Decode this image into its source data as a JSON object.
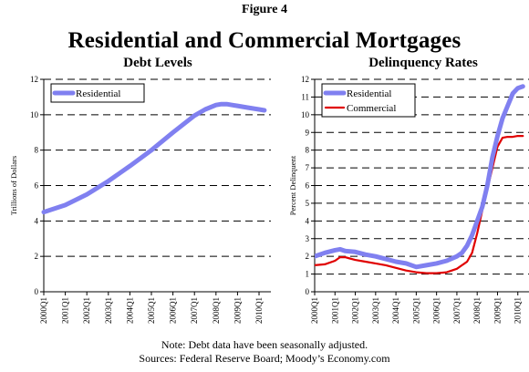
{
  "figure_label": "Figure 4",
  "main_title": "Residential and Commercial Mortgages",
  "footer_note": "Note: Debt data have been seasonally adjusted.",
  "footer_sources": "Sources: Federal Reserve Board; Moody’s Economy.com",
  "colors": {
    "residential": "#8080f0",
    "commercial": "#e00000",
    "grid": "#000000"
  },
  "chart_data": [
    {
      "type": "line",
      "title": "Debt Levels",
      "ylabel": "Trillions of Dollars",
      "xlabel": "",
      "ylim": [
        0,
        12
      ],
      "yticks": [
        0,
        2,
        4,
        6,
        8,
        10,
        12
      ],
      "grid": "dashed horizontal",
      "legend_position": "top-left",
      "x_categories": [
        "2000Q1",
        "2001Q1",
        "2002Q1",
        "2003Q1",
        "2004Q1",
        "2005Q1",
        "2006Q1",
        "2007Q1",
        "2008Q1",
        "2009Q1",
        "2010Q1"
      ],
      "series": [
        {
          "name": "Residential",
          "x": [
            2000.0,
            2001.0,
            2002.0,
            2003.0,
            2004.0,
            2005.0,
            2006.0,
            2007.0,
            2007.5,
            2008.0,
            2008.25,
            2008.5,
            2008.75,
            2009.0,
            2009.5,
            2010.0,
            2010.25
          ],
          "y": [
            4.5,
            4.9,
            5.5,
            6.25,
            7.1,
            8.0,
            9.0,
            9.95,
            10.3,
            10.55,
            10.6,
            10.6,
            10.55,
            10.5,
            10.4,
            10.3,
            10.25
          ]
        }
      ]
    },
    {
      "type": "line",
      "title": "Delinquency Rates",
      "ylabel": "Percent Delinquent",
      "xlabel": "",
      "ylim": [
        0,
        12
      ],
      "yticks": [
        0,
        1,
        2,
        3,
        4,
        5,
        6,
        7,
        8,
        9,
        10,
        11,
        12
      ],
      "grid": "dashed horizontal",
      "legend_position": "top-left",
      "x_categories": [
        "2000Q1",
        "2001Q1",
        "2002Q1",
        "2003Q1",
        "2004Q1",
        "2005Q1",
        "2006Q1",
        "2007Q1",
        "2008Q1",
        "2009Q1",
        "2010Q1"
      ],
      "series": [
        {
          "name": "Residential",
          "x": [
            2000.0,
            2000.5,
            2001.0,
            2001.25,
            2001.5,
            2002.0,
            2002.5,
            2003.0,
            2003.5,
            2004.0,
            2004.5,
            2005.0,
            2005.5,
            2006.0,
            2006.5,
            2007.0,
            2007.25,
            2007.5,
            2007.75,
            2008.0,
            2008.25,
            2008.5,
            2008.75,
            2009.0,
            2009.25,
            2009.5,
            2009.75,
            2010.0,
            2010.25
          ],
          "y": [
            2.0,
            2.2,
            2.35,
            2.4,
            2.3,
            2.25,
            2.1,
            2.0,
            1.85,
            1.7,
            1.6,
            1.4,
            1.5,
            1.6,
            1.75,
            2.0,
            2.2,
            2.6,
            3.2,
            4.0,
            4.8,
            6.0,
            7.6,
            8.8,
            9.8,
            10.5,
            11.2,
            11.5,
            11.6
          ]
        },
        {
          "name": "Commercial",
          "x": [
            2000.0,
            2000.5,
            2001.0,
            2001.25,
            2001.5,
            2002.0,
            2002.5,
            2003.0,
            2003.5,
            2004.0,
            2004.5,
            2005.0,
            2005.5,
            2006.0,
            2006.5,
            2007.0,
            2007.25,
            2007.5,
            2007.75,
            2008.0,
            2008.25,
            2008.5,
            2008.75,
            2009.0,
            2009.25,
            2009.5,
            2009.75,
            2010.0,
            2010.25
          ],
          "y": [
            1.5,
            1.55,
            1.75,
            1.95,
            1.95,
            1.8,
            1.7,
            1.6,
            1.5,
            1.35,
            1.2,
            1.1,
            1.05,
            1.05,
            1.1,
            1.3,
            1.5,
            1.7,
            2.2,
            3.3,
            4.6,
            5.8,
            7.0,
            8.2,
            8.7,
            8.75,
            8.75,
            8.8,
            8.8
          ]
        }
      ]
    }
  ]
}
